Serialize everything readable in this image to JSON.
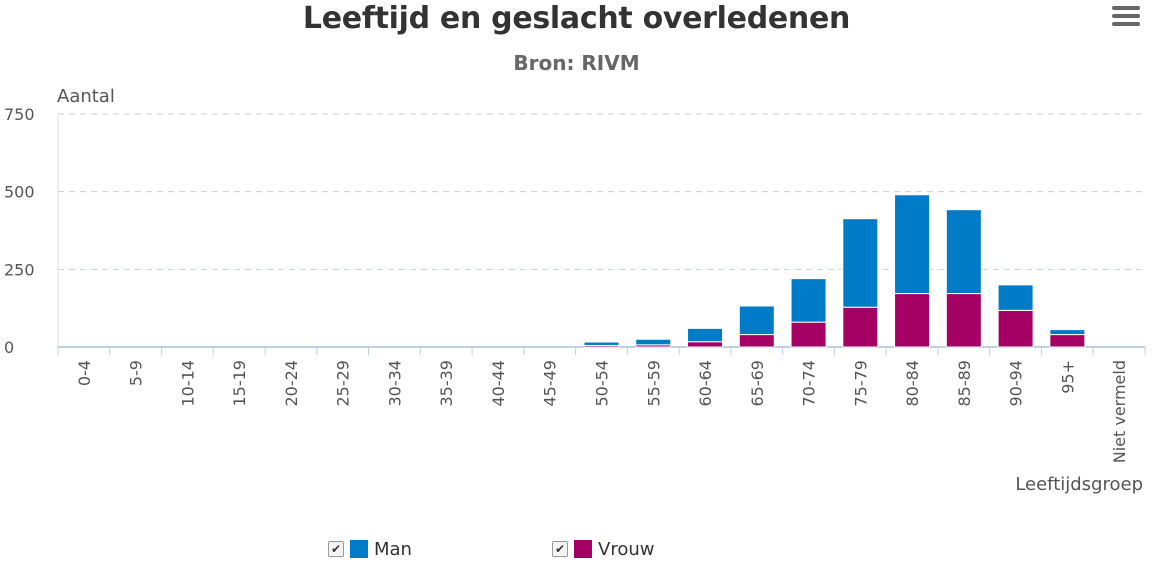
{
  "chart_data": {
    "type": "bar",
    "stacked": true,
    "title": "Leeftijd en geslacht overledenen",
    "subtitle": "Bron: RIVM",
    "xlabel": "Leeftijdsgroep",
    "ylabel": "Aantal",
    "ylim": [
      0,
      750
    ],
    "yticks": [
      0,
      250,
      500,
      750
    ],
    "grid": true,
    "categories": [
      "0-4",
      "5-9",
      "10-14",
      "15-19",
      "20-24",
      "25-29",
      "30-34",
      "35-39",
      "40-44",
      "45-49",
      "50-54",
      "55-59",
      "60-64",
      "65-69",
      "70-74",
      "75-79",
      "80-84",
      "85-89",
      "90-94",
      "95+",
      "Niet vermeld"
    ],
    "series": [
      {
        "name": "Vrouw",
        "color": "#a50064",
        "values": [
          0,
          0,
          0,
          0,
          0,
          0,
          0,
          0,
          0,
          0,
          5,
          7,
          17,
          40,
          80,
          128,
          172,
          172,
          118,
          40,
          0
        ]
      },
      {
        "name": "Man",
        "color": "#007bc7",
        "values": [
          0,
          0,
          0,
          0,
          0,
          0,
          0,
          0,
          0,
          0,
          11,
          18,
          43,
          92,
          140,
          285,
          318,
          270,
          82,
          16,
          0
        ]
      }
    ],
    "legend": [
      {
        "label": "Man",
        "color": "#007bc7",
        "checked": "✔"
      },
      {
        "label": "Vrouw",
        "color": "#a50064",
        "checked": "✔"
      }
    ],
    "legend_position": "bottom"
  },
  "menu": {
    "icon": "hamburger-menu-icon"
  }
}
